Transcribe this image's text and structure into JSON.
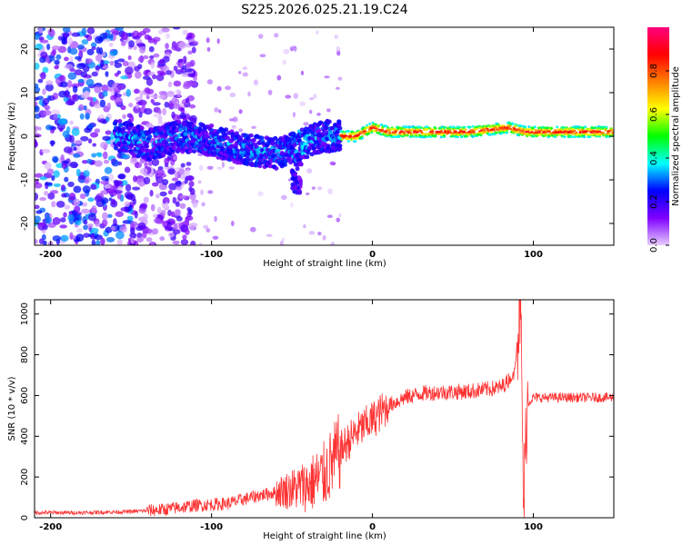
{
  "figure": {
    "title": "S225.2026.025.21.19.C24"
  },
  "chart_data": [
    {
      "type": "heatmap",
      "name": "spectrogram",
      "xlabel": "Height of straight line (km)",
      "ylabel": "Frequency (Hz)",
      "xlim": [
        -210,
        150
      ],
      "ylim": [
        -25,
        25
      ],
      "xticks": [
        -200,
        -100,
        0,
        100
      ],
      "yticks": [
        -20,
        -10,
        0,
        10,
        20
      ],
      "colorbar": {
        "label": "Normalized spectral amplitude",
        "range": [
          0,
          1
        ],
        "ticks": [
          0.0,
          0.2,
          0.4,
          0.6,
          0.8
        ],
        "colors": [
          "#e6ccff",
          "#7f00ff",
          "#0000ff",
          "#00ffff",
          "#00ff00",
          "#ffff00",
          "#ff8000",
          "#ff0000",
          "#ff0080"
        ]
      },
      "ridge": {
        "description_points_x": [
          -155,
          -140,
          -120,
          -100,
          -80,
          -60,
          -45,
          -30,
          -20,
          -10,
          0,
          10,
          30,
          60,
          85,
          95,
          150
        ],
        "description_points_freq": [
          0,
          -2,
          0,
          -1,
          -3,
          -4,
          -2,
          0,
          0,
          0,
          2,
          1,
          1,
          1,
          2,
          1,
          1
        ]
      }
    },
    {
      "type": "line",
      "name": "snr",
      "xlabel": "Height of straight line (km)",
      "ylabel": "SNR (10 * v/v)",
      "xlim": [
        -210,
        150
      ],
      "ylim": [
        0,
        1070
      ],
      "xticks": [
        -200,
        -100,
        0,
        100
      ],
      "yticks": [
        0,
        200,
        400,
        600,
        800,
        1000
      ],
      "series": [
        {
          "name": "SNR",
          "color": "#ff3333",
          "x": [
            -210,
            -180,
            -150,
            -130,
            -110,
            -90,
            -70,
            -50,
            -40,
            -30,
            -20,
            -10,
            0,
            10,
            20,
            30,
            40,
            60,
            80,
            88,
            92,
            94,
            96,
            100,
            120,
            150
          ],
          "y": [
            25,
            25,
            30,
            40,
            60,
            70,
            110,
            140,
            160,
            210,
            330,
            420,
            480,
            550,
            590,
            610,
            615,
            620,
            640,
            700,
            1060,
            20,
            560,
            590,
            590,
            590
          ]
        }
      ]
    }
  ]
}
